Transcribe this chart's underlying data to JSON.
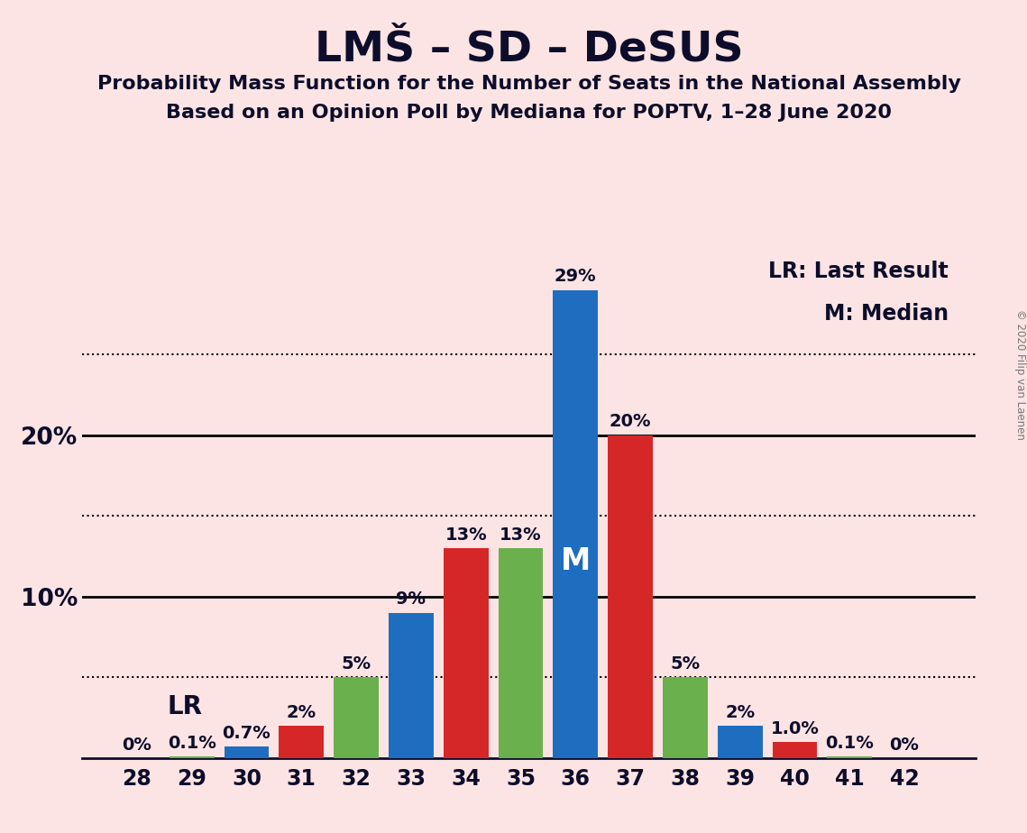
{
  "title": "LMŠ – SD – DeSUS",
  "subtitle1": "Probability Mass Function for the Number of Seats in the National Assembly",
  "subtitle2": "Based on an Opinion Poll by Mediana for POPTV, 1–28 June 2020",
  "copyright": "© 2020 Filip van Laenen",
  "legend_lr": "LR: Last Result",
  "legend_m": "M: Median",
  "lr_label": "LR",
  "m_label": "M",
  "seats": [
    28,
    29,
    30,
    31,
    32,
    33,
    34,
    35,
    36,
    37,
    38,
    39,
    40,
    41,
    42
  ],
  "values": [
    0.0,
    0.1,
    0.7,
    2.0,
    5.0,
    9.0,
    13.0,
    13.0,
    29.0,
    20.0,
    5.0,
    2.0,
    1.0,
    0.1,
    0.0
  ],
  "labels": [
    "0%",
    "0.1%",
    "0.7%",
    "2%",
    "5%",
    "9%",
    "13%",
    "13%",
    "29%",
    "20%",
    "5%",
    "2%",
    "1.0%",
    "0.1%",
    "0%"
  ],
  "lr_seat": 30,
  "median_seat": 36,
  "dotted_lines": [
    5,
    15,
    25
  ],
  "solid_lines": [
    10,
    20
  ],
  "ylim": [
    0,
    32
  ],
  "background_color": "#fce4e4",
  "bar_blue": "#1f6dbf",
  "bar_red": "#d62728",
  "bar_green": "#6ab04c",
  "title_color": "#0d0d2b",
  "text_color": "#0d0d2b",
  "axis_color": "#0d0d2b",
  "copyright_color": "#777777",
  "bar_colors_list": [
    "#6ab04c",
    "#6ab04c",
    "#1f6dbf",
    "#d62728",
    "#6ab04c",
    "#1f6dbf",
    "#d62728",
    "#6ab04c",
    "#1f6dbf",
    "#d62728",
    "#6ab04c",
    "#1f6dbf",
    "#d62728",
    "#6ab04c",
    "#6ab04c"
  ],
  "xlim": [
    27.0,
    43.3
  ],
  "label_fontsize": 14,
  "tick_fontsize": 17,
  "ytick_fontsize": 19,
  "title_fontsize": 34,
  "subtitle_fontsize": 16,
  "legend_fontsize": 17,
  "lr_fontsize": 20,
  "m_inside_fontsize": 24
}
